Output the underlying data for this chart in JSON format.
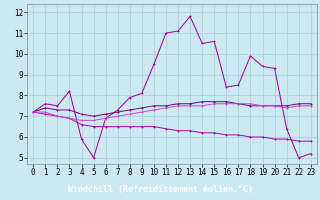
{
  "xlabel": "Windchill (Refroidissement éolien,°C)",
  "bg_color": "#cce8f0",
  "grid_color": "#aaccdd",
  "xlabel_bg": "#6600aa",
  "xlabel_color": "#ffffff",
  "line_color1": "#990099",
  "line_color2": "#cc44cc",
  "line_color3": "#770077",
  "line_color4": "#aa00aa",
  "xlim": [
    -0.5,
    23.5
  ],
  "ylim": [
    4.7,
    12.4
  ],
  "yticks": [
    5,
    6,
    7,
    8,
    9,
    10,
    11,
    12
  ],
  "xticks": [
    0,
    1,
    2,
    3,
    4,
    5,
    6,
    7,
    8,
    9,
    10,
    11,
    12,
    13,
    14,
    15,
    16,
    17,
    18,
    19,
    20,
    21,
    22,
    23
  ],
  "series1_x": [
    0,
    1,
    2,
    3,
    4,
    5,
    6,
    7,
    8,
    9,
    10,
    11,
    12,
    13,
    14,
    15,
    16,
    17,
    18,
    19,
    20,
    21,
    22,
    23
  ],
  "series1_y": [
    7.2,
    7.6,
    7.5,
    8.2,
    5.9,
    5.0,
    6.9,
    7.3,
    7.9,
    8.1,
    9.5,
    11.0,
    11.1,
    11.8,
    10.5,
    10.6,
    8.4,
    8.5,
    9.9,
    9.4,
    9.3,
    6.4,
    5.0,
    5.2
  ],
  "series2_x": [
    0,
    1,
    2,
    3,
    4,
    5,
    6,
    7,
    8,
    9,
    10,
    11,
    12,
    13,
    14,
    15,
    16,
    17,
    18,
    19,
    20,
    21,
    22,
    23
  ],
  "series2_y": [
    7.2,
    7.4,
    7.3,
    7.3,
    7.1,
    7.0,
    7.1,
    7.2,
    7.3,
    7.4,
    7.5,
    7.5,
    7.6,
    7.6,
    7.7,
    7.7,
    7.7,
    7.6,
    7.5,
    7.5,
    7.5,
    7.5,
    7.6,
    7.6
  ],
  "series3_x": [
    0,
    1,
    2,
    3,
    4,
    5,
    6,
    7,
    8,
    9,
    10,
    11,
    12,
    13,
    14,
    15,
    16,
    17,
    18,
    19,
    20,
    21,
    22,
    23
  ],
  "series3_y": [
    7.2,
    7.1,
    7.0,
    6.9,
    6.6,
    6.5,
    6.5,
    6.5,
    6.5,
    6.5,
    6.5,
    6.4,
    6.3,
    6.3,
    6.2,
    6.2,
    6.1,
    6.1,
    6.0,
    6.0,
    5.9,
    5.9,
    5.8,
    5.8
  ],
  "series4_x": [
    0,
    1,
    2,
    3,
    4,
    5,
    6,
    7,
    8,
    9,
    10,
    11,
    12,
    13,
    14,
    15,
    16,
    17,
    18,
    19,
    20,
    21,
    22,
    23
  ],
  "series4_y": [
    7.2,
    7.2,
    7.0,
    6.9,
    6.8,
    6.8,
    6.9,
    7.0,
    7.1,
    7.2,
    7.3,
    7.4,
    7.5,
    7.5,
    7.5,
    7.6,
    7.6,
    7.6,
    7.6,
    7.5,
    7.5,
    7.4,
    7.5,
    7.5
  ],
  "tick_fontsize": 5.5,
  "label_fontsize": 6.0
}
